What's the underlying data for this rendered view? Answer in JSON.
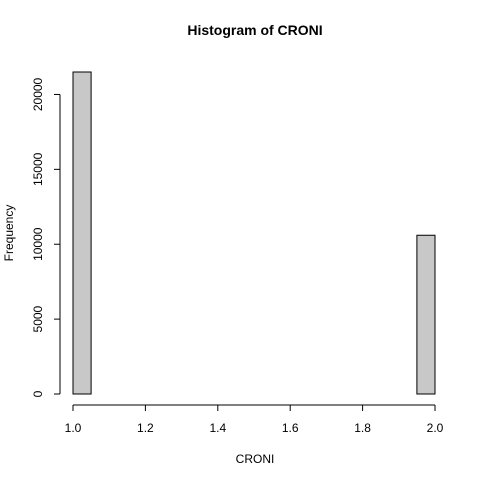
{
  "chart_data": {
    "type": "bar",
    "title": "Histogram of CRONI",
    "xlabel": "CRONI",
    "ylabel": "Frequency",
    "xlim": [
      1.0,
      2.0
    ],
    "ylim": [
      0,
      21500
    ],
    "bar_color": "#c8c8c8",
    "bar_edge_color": "#000000",
    "bin_width": 0.05,
    "bins": [
      {
        "start": 1.0,
        "end": 1.05,
        "count": 21500
      },
      {
        "start": 1.05,
        "end": 1.1,
        "count": 0
      },
      {
        "start": 1.1,
        "end": 1.15,
        "count": 0
      },
      {
        "start": 1.15,
        "end": 1.2,
        "count": 0
      },
      {
        "start": 1.2,
        "end": 1.25,
        "count": 0
      },
      {
        "start": 1.25,
        "end": 1.3,
        "count": 0
      },
      {
        "start": 1.3,
        "end": 1.35,
        "count": 0
      },
      {
        "start": 1.35,
        "end": 1.4,
        "count": 0
      },
      {
        "start": 1.4,
        "end": 1.45,
        "count": 0
      },
      {
        "start": 1.45,
        "end": 1.5,
        "count": 0
      },
      {
        "start": 1.5,
        "end": 1.55,
        "count": 0
      },
      {
        "start": 1.55,
        "end": 1.6,
        "count": 0
      },
      {
        "start": 1.6,
        "end": 1.65,
        "count": 0
      },
      {
        "start": 1.65,
        "end": 1.7,
        "count": 0
      },
      {
        "start": 1.7,
        "end": 1.75,
        "count": 0
      },
      {
        "start": 1.75,
        "end": 1.8,
        "count": 0
      },
      {
        "start": 1.8,
        "end": 1.85,
        "count": 0
      },
      {
        "start": 1.85,
        "end": 1.9,
        "count": 0
      },
      {
        "start": 1.9,
        "end": 1.95,
        "count": 0
      },
      {
        "start": 1.95,
        "end": 2.0,
        "count": 10600
      }
    ],
    "x_ticks": [
      "1.0",
      "1.2",
      "1.4",
      "1.6",
      "1.8",
      "2.0"
    ],
    "y_ticks": [
      "0",
      "5000",
      "10000",
      "15000",
      "20000"
    ],
    "grid": false,
    "legend": "none"
  }
}
